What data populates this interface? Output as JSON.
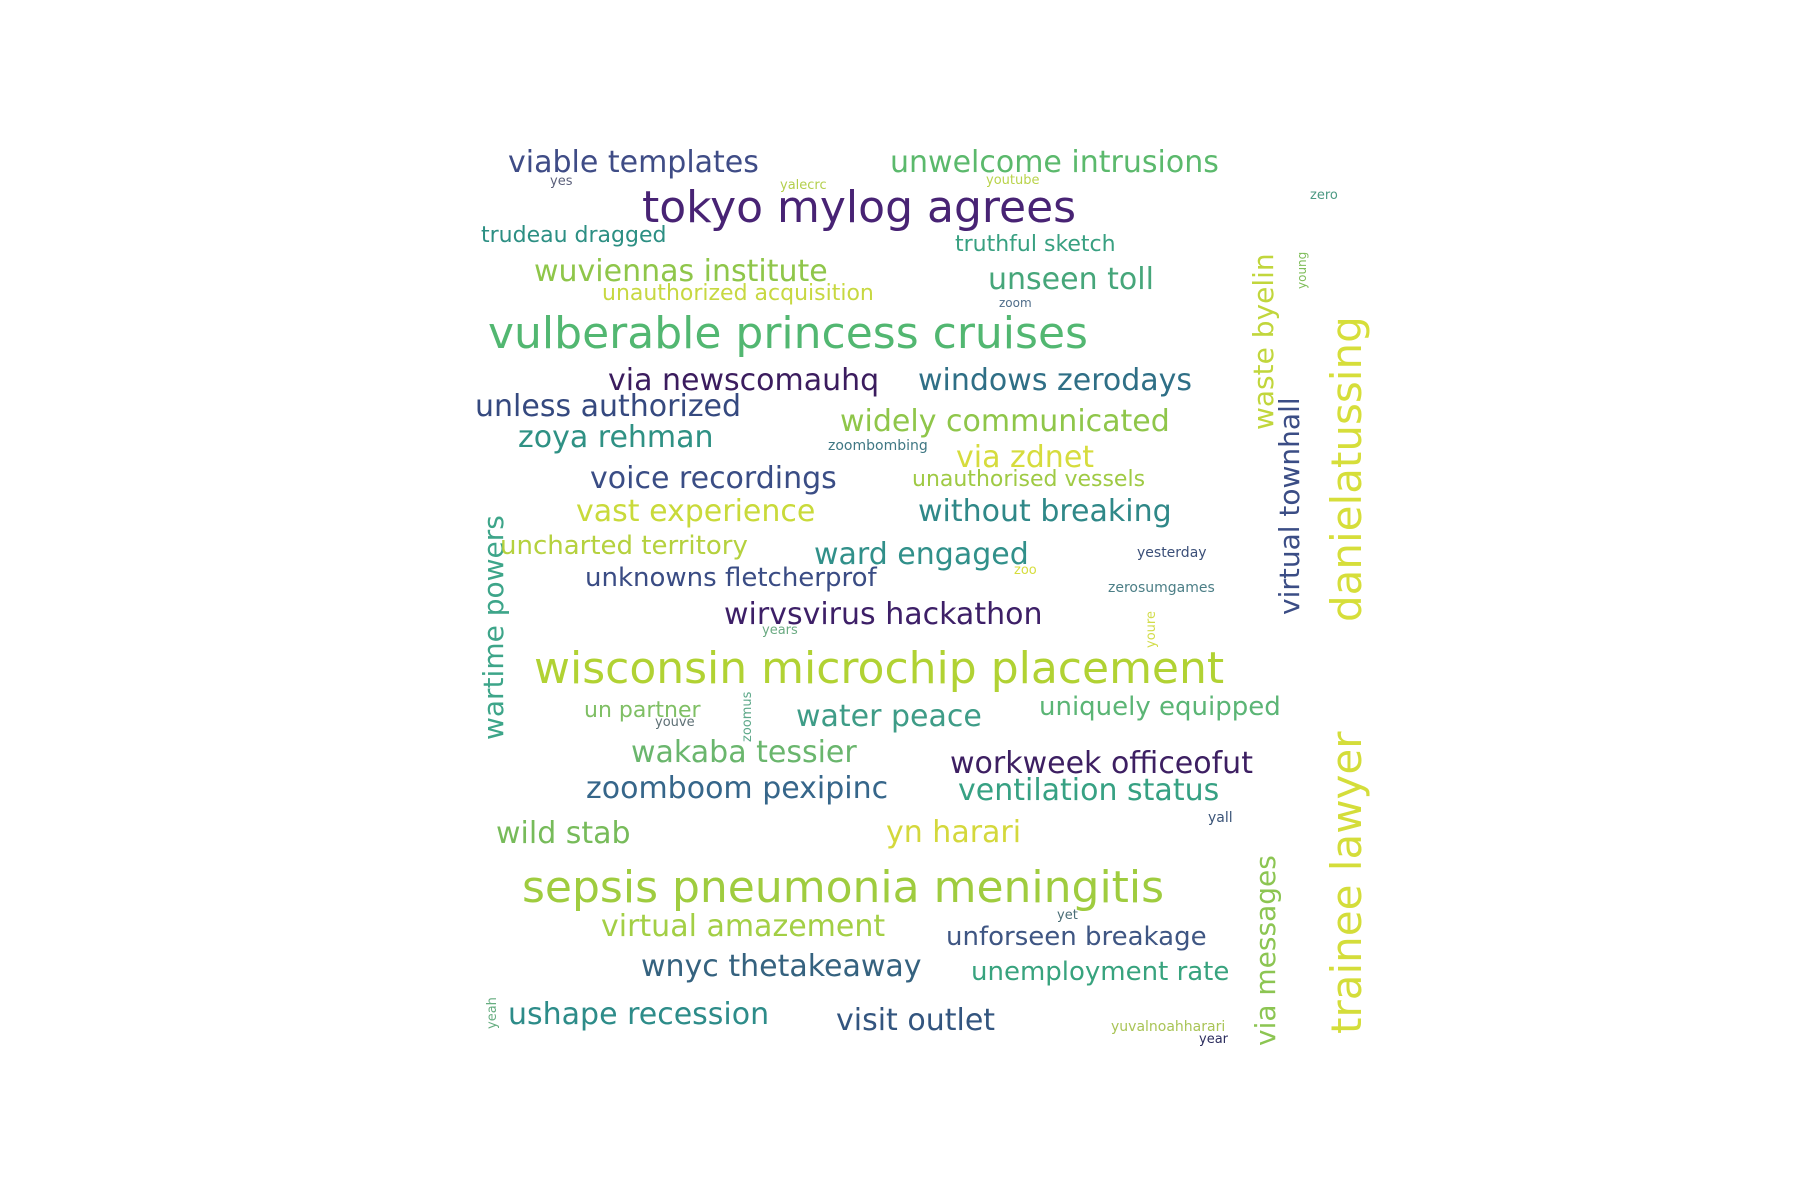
{
  "words": [
    {
      "text": "tokyo mylog agrees",
      "color": "#482374"
    },
    {
      "text": "vulberable princess cruises",
      "color": "#52b771"
    },
    {
      "text": "wisconsin microchip placement",
      "color": "#b1d233"
    },
    {
      "text": "sepsis pneumonia meningitis",
      "color": "#9fcc3f"
    },
    {
      "text": "trainee lawyer",
      "color": "#d4dd3a"
    },
    {
      "text": "danielatussing",
      "color": "#d6de3a"
    },
    {
      "text": "viable templates",
      "color": "#3f4c86"
    },
    {
      "text": "unwelcome intrusions",
      "color": "#5bb96c"
    },
    {
      "text": "yes",
      "color": "#5a5f7a"
    },
    {
      "text": "yalecrc",
      "color": "#b3cf4c"
    },
    {
      "text": "youtube",
      "color": "#b9d34a"
    },
    {
      "text": "zero",
      "color": "#4c9a83"
    },
    {
      "text": "trudeau dragged",
      "color": "#2c8f83"
    },
    {
      "text": "truthful sketch",
      "color": "#38a081"
    },
    {
      "text": "wuviennas institute",
      "color": "#8fc64a"
    },
    {
      "text": "unauthorized acquisition",
      "color": "#c7d841"
    },
    {
      "text": "unseen toll",
      "color": "#46a67a"
    },
    {
      "text": "zoom",
      "color": "#4f6d8a"
    },
    {
      "text": "young",
      "color": "#7fbd5a"
    },
    {
      "text": "waste byelin",
      "color": "#c1d63c"
    },
    {
      "text": "virtual townhall",
      "color": "#3b4d85"
    },
    {
      "text": "via newscomauhq",
      "color": "#3b1c5e"
    },
    {
      "text": "windows zerodays",
      "color": "#2f6f86"
    },
    {
      "text": "unless authorized",
      "color": "#35497f"
    },
    {
      "text": "widely communicated",
      "color": "#8fc64a"
    },
    {
      "text": "zoya rehman",
      "color": "#2f9184"
    },
    {
      "text": "zoombombing",
      "color": "#3f7783"
    },
    {
      "text": "via zdnet",
      "color": "#d6dc3d"
    },
    {
      "text": "voice recordings",
      "color": "#3a4d85"
    },
    {
      "text": "unauthorised vessels",
      "color": "#9fca44"
    },
    {
      "text": "vast experience",
      "color": "#c9da3a"
    },
    {
      "text": "without breaking",
      "color": "#2f8888"
    },
    {
      "text": "wartime powers",
      "color": "#3da589"
    },
    {
      "text": "uncharted territory",
      "color": "#b5d13e"
    },
    {
      "text": "ward engaged",
      "color": "#31908a"
    },
    {
      "text": "yesterday",
      "color": "#3b4f78"
    },
    {
      "text": "unknowns fletcherprof",
      "color": "#3a4c84"
    },
    {
      "text": "zoo",
      "color": "#d6dd3c"
    },
    {
      "text": "zerosumgames",
      "color": "#4b7e86"
    },
    {
      "text": "wirvsvirus hackathon",
      "color": "#3d1f67"
    },
    {
      "text": "years",
      "color": "#6aaa82"
    },
    {
      "text": "youre",
      "color": "#d2dc4a"
    },
    {
      "text": "un partner",
      "color": "#7fbf64"
    },
    {
      "text": "youve",
      "color": "#5d6f74"
    },
    {
      "text": "zoomus",
      "color": "#5da889"
    },
    {
      "text": "water peace",
      "color": "#3e9c87"
    },
    {
      "text": "uniquely equipped",
      "color": "#5bb575"
    },
    {
      "text": "wakaba tessier",
      "color": "#6ab66d"
    },
    {
      "text": "workweek officeofut",
      "color": "#3d1f62"
    },
    {
      "text": "zoomboom pexipinc",
      "color": "#36668a"
    },
    {
      "text": "ventilation status",
      "color": "#37a183"
    },
    {
      "text": "wild stab",
      "color": "#77bb5a"
    },
    {
      "text": "yn harari",
      "color": "#d4d83c"
    },
    {
      "text": "yall",
      "color": "#3b5478"
    },
    {
      "text": "via messages",
      "color": "#8cc552"
    },
    {
      "text": "virtual amazement",
      "color": "#a3cf45"
    },
    {
      "text": "yet",
      "color": "#4a6d76"
    },
    {
      "text": "unforseen breakage",
      "color": "#3f5683"
    },
    {
      "text": "wnyc thetakeaway",
      "color": "#35627f"
    },
    {
      "text": "unemployment rate",
      "color": "#38a37e"
    },
    {
      "text": "yeah",
      "color": "#66ad80"
    },
    {
      "text": "ushape recession",
      "color": "#2d8c89"
    },
    {
      "text": "visit outlet",
      "color": "#33557f"
    },
    {
      "text": "yuvalnoahharari",
      "color": "#a9c456"
    },
    {
      "text": "year",
      "color": "#2c2d5e"
    }
  ]
}
